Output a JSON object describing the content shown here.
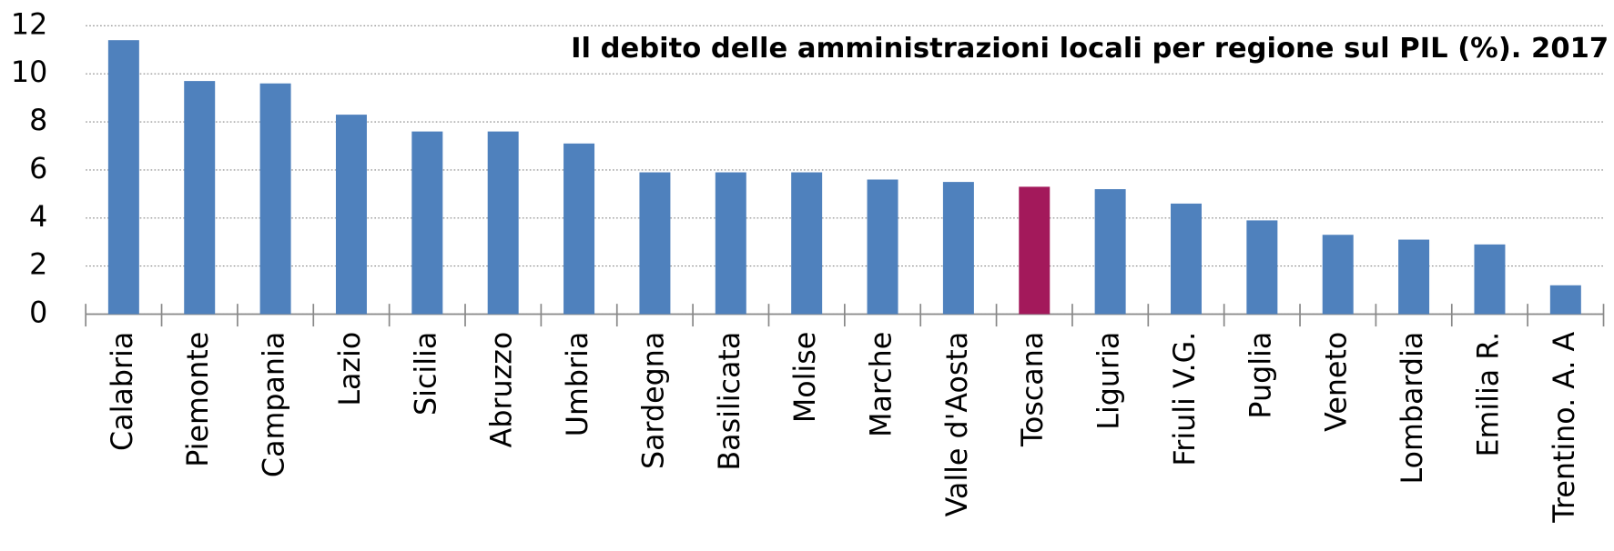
{
  "chart_data": {
    "type": "bar",
    "title": "Il debito delle amministrazioni locali per regione sul PIL (%). 2017",
    "categories": [
      "Calabria",
      "Piemonte",
      "Campania",
      "Lazio",
      "Sicilia",
      "Abruzzo",
      "Umbria",
      "Sardegna",
      "Basilicata",
      "Molise",
      "Marche",
      "Valle d'Aosta",
      "Toscana",
      "Liguria",
      "Friuli V.G.",
      "Puglia",
      "Veneto",
      "Lombardia",
      "Emilia R.",
      "Trentino. A. A"
    ],
    "values": [
      11.4,
      9.7,
      9.6,
      8.3,
      7.6,
      7.6,
      7.1,
      5.9,
      5.9,
      5.9,
      5.6,
      5.5,
      5.3,
      5.2,
      4.6,
      3.9,
      3.3,
      3.1,
      2.9,
      1.2
    ],
    "colors": [
      "#4f81bd",
      "#4f81bd",
      "#4f81bd",
      "#4f81bd",
      "#4f81bd",
      "#4f81bd",
      "#4f81bd",
      "#4f81bd",
      "#4f81bd",
      "#4f81bd",
      "#4f81bd",
      "#4f81bd",
      "#a3195b",
      "#4f81bd",
      "#4f81bd",
      "#4f81bd",
      "#4f81bd",
      "#4f81bd",
      "#4f81bd",
      "#4f81bd"
    ],
    "title_color": "#a3195b",
    "ylim": [
      0,
      12
    ],
    "yticks": [
      0,
      2,
      4,
      6,
      8,
      10,
      12
    ],
    "grid": true
  }
}
